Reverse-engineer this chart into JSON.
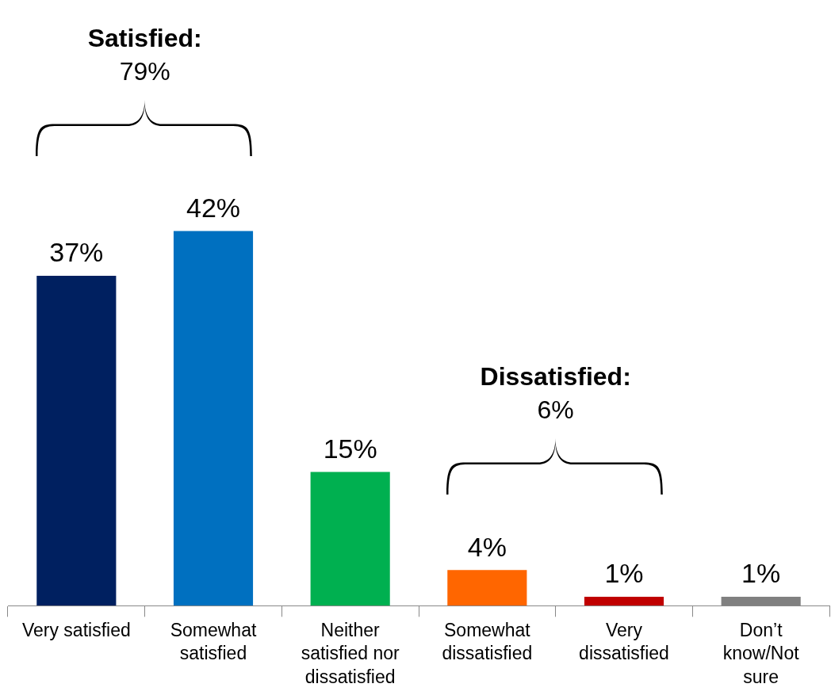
{
  "chart_data": {
    "type": "bar",
    "categories": [
      "Very satisfied",
      "Somewhat satisfied",
      "Neither satisfied nor dissatisfied",
      "Somewhat dissatisfied",
      "Very dissatisfied",
      "Don’t know/Not sure"
    ],
    "values": [
      37,
      42,
      15,
      4,
      1,
      1
    ],
    "colors": [
      "#002060",
      "#0070c0",
      "#00b050",
      "#ff6600",
      "#c00000",
      "#808080"
    ],
    "value_labels": [
      "37%",
      "42%",
      "15%",
      "4%",
      "1%",
      "1%"
    ],
    "annotations": [
      "Satisfied:",
      "79%",
      "Dissatisfied:",
      "6%"
    ]
  }
}
